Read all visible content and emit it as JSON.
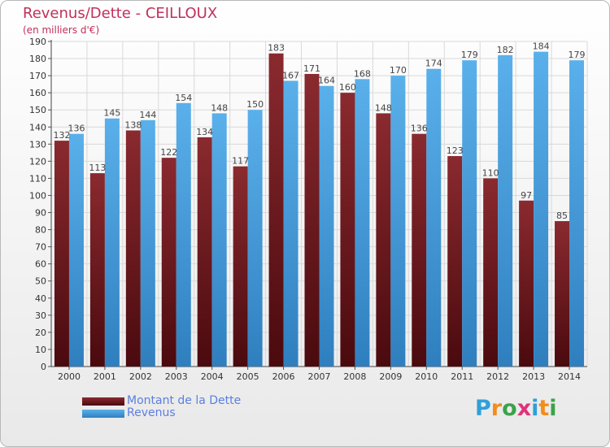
{
  "header": {
    "title": "Revenus/Dette - CEILLOUX",
    "subtitle": "(en milliers d'€)"
  },
  "legend": {
    "items": [
      {
        "label": "Montant de la Dette",
        "color": "#7a1f24"
      },
      {
        "label": "Revenus",
        "color": "#4aa3e0"
      }
    ]
  },
  "logo": {
    "text": "Proxiti",
    "letters": [
      "P",
      "r",
      "o",
      "x",
      "i",
      "t",
      "i"
    ],
    "colors": [
      "#2f9fd8",
      "#f28c1c",
      "#3aa348",
      "#e0317a",
      "#2f9fd8",
      "#f28c1c",
      "#3aa348"
    ]
  },
  "colors": {
    "title": "#c0305a",
    "debt": "#7a1f24",
    "revenue": "#4aa3e0",
    "grid": "#d9d9d9",
    "axis_text": "#333333"
  },
  "chart_data": {
    "type": "bar",
    "title": "Revenus/Dette - CEILLOUX",
    "subtitle": "(en milliers d'€)",
    "xlabel": "",
    "ylabel": "",
    "ylim": [
      0,
      190
    ],
    "ytick_step": 10,
    "grid": true,
    "legend_placement": "bottom-left",
    "categories": [
      "2000",
      "2001",
      "2002",
      "2003",
      "2004",
      "2005",
      "2006",
      "2007",
      "2008",
      "2009",
      "2010",
      "2011",
      "2012",
      "2013",
      "2014"
    ],
    "series": [
      {
        "name": "Montant de la Dette",
        "values": [
          132,
          113,
          138,
          122,
          134,
          117,
          183,
          171,
          160,
          148,
          136,
          123,
          110,
          97,
          85
        ]
      },
      {
        "name": "Revenus",
        "values": [
          136,
          145,
          144,
          154,
          148,
          150,
          167,
          164,
          168,
          170,
          174,
          179,
          182,
          184,
          179
        ]
      }
    ]
  }
}
